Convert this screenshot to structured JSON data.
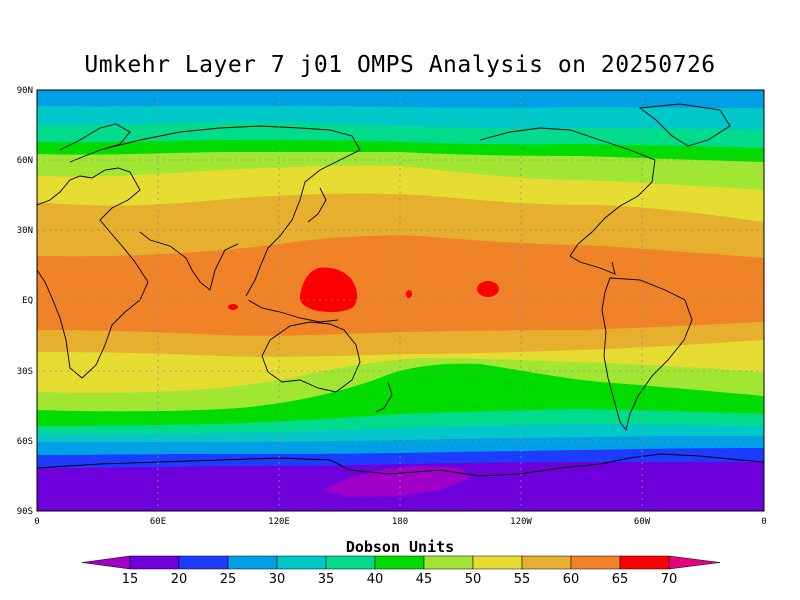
{
  "title": "Umkehr Layer 7 j01 OMPS Analysis on 20250726",
  "map": {
    "lat_labels": [
      "90N",
      "60N",
      "30N",
      "EQ",
      "30S",
      "60S",
      "90S"
    ],
    "lon_labels": [
      "0",
      "60E",
      "120E",
      "180",
      "120W",
      "60W",
      "0"
    ],
    "projection": "cylindrical equidistant",
    "lon_range": [
      0,
      360
    ],
    "lat_range": [
      -90,
      90
    ],
    "grid": true
  },
  "colorbar": {
    "title": "Dobson Units",
    "labels": [
      "15",
      "20",
      "25",
      "30",
      "35",
      "40",
      "45",
      "50",
      "55",
      "60",
      "65",
      "70"
    ],
    "colors": [
      "#a000c8",
      "#6e00dc",
      "#1e3cff",
      "#00a0e6",
      "#00c8c8",
      "#00dc8c",
      "#00dc00",
      "#a0e632",
      "#e6dc32",
      "#e6af2d",
      "#f08228",
      "#fa0000",
      "#e60082"
    ]
  },
  "chart_data": {
    "type": "heatmap",
    "title": "Umkehr Layer 7 j01 OMPS Analysis on 20250726",
    "units": "Dobson Units",
    "levels": [
      15,
      20,
      25,
      30,
      35,
      40,
      45,
      50,
      55,
      60,
      65,
      70
    ],
    "zonal_bands": [
      {
        "lat": [
          80,
          90
        ],
        "value_range": [
          25,
          30
        ]
      },
      {
        "lat": [
          72,
          80
        ],
        "value_range": [
          30,
          35
        ]
      },
      {
        "lat": [
          67,
          72
        ],
        "value_range": [
          35,
          40
        ]
      },
      {
        "lat": [
          60,
          67
        ],
        "value_range": [
          40,
          45
        ]
      },
      {
        "lat": [
          48,
          60
        ],
        "value_range": [
          45,
          50
        ]
      },
      {
        "lat": [
          36,
          48
        ],
        "value_range": [
          50,
          55
        ]
      },
      {
        "lat": [
          23,
          36
        ],
        "value_range": [
          55,
          60
        ]
      },
      {
        "lat": [
          -10,
          23
        ],
        "value_range": [
          60,
          65
        ]
      },
      {
        "lat": [
          -20,
          -10
        ],
        "value_range": [
          55,
          60
        ]
      },
      {
        "lat": [
          -28,
          -20
        ],
        "value_range": [
          50,
          55
        ]
      },
      {
        "lat": [
          -40,
          -28
        ],
        "value_range": [
          45,
          50
        ]
      },
      {
        "lat": [
          -48,
          -40
        ],
        "value_range": [
          40,
          45
        ]
      },
      {
        "lat": [
          -53,
          -48
        ],
        "value_range": [
          35,
          40
        ]
      },
      {
        "lat": [
          -57,
          -53
        ],
        "value_range": [
          30,
          35
        ]
      },
      {
        "lat": [
          -61,
          -57
        ],
        "value_range": [
          25,
          30
        ]
      },
      {
        "lat": [
          -66,
          -61
        ],
        "value_range": [
          20,
          25
        ]
      },
      {
        "lat": [
          -90,
          -66
        ],
        "value_range": [
          15,
          20
        ]
      }
    ],
    "maxima": [
      {
        "region": "western tropical Pacific",
        "lon": 145,
        "lat": 5,
        "value_range": [
          65,
          70
        ]
      },
      {
        "region": "central tropical Pacific",
        "lon": 205,
        "lat": 5,
        "value_range": [
          65,
          70
        ]
      }
    ],
    "minimum": {
      "region": "Antarctica (Ross sector)",
      "value_range": [
        10,
        15
      ]
    }
  }
}
